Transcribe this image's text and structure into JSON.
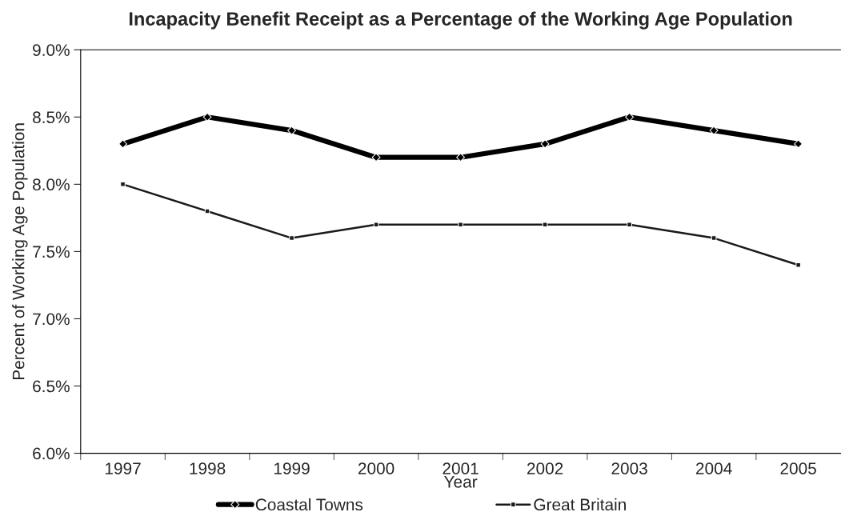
{
  "chart_data": {
    "type": "line",
    "title": "Incapacity Benefit Receipt as a Percentage of the Working Age Population",
    "xlabel": "Year",
    "ylabel": "Percent of Working Age Population",
    "categories": [
      "1997",
      "1998",
      "1999",
      "2000",
      "2001",
      "2002",
      "2003",
      "2004",
      "2005"
    ],
    "series": [
      {
        "name": "Coastal Towns",
        "color": "#000000",
        "marker": "diamond",
        "values": [
          8.3,
          8.5,
          8.4,
          8.2,
          8.2,
          8.3,
          8.5,
          8.4,
          8.3
        ]
      },
      {
        "name": "Great Britain",
        "color": "#1a1a1a",
        "marker": "square",
        "values": [
          8.0,
          7.8,
          7.6,
          7.7,
          7.7,
          7.7,
          7.7,
          7.6,
          7.4
        ]
      }
    ],
    "ylim": [
      6.0,
      9.0
    ],
    "yticks": [
      {
        "value": 6.0,
        "label": "6.0%"
      },
      {
        "value": 6.5,
        "label": "6.5%"
      },
      {
        "value": 7.0,
        "label": "7.0%"
      },
      {
        "value": 7.5,
        "label": "7.5%"
      },
      {
        "value": 8.0,
        "label": "8.0%"
      },
      {
        "value": 8.5,
        "label": "8.5%"
      },
      {
        "value": 9.0,
        "label": "9.0%"
      }
    ],
    "grid": false,
    "legend": "bottom",
    "line_style": "solid"
  }
}
